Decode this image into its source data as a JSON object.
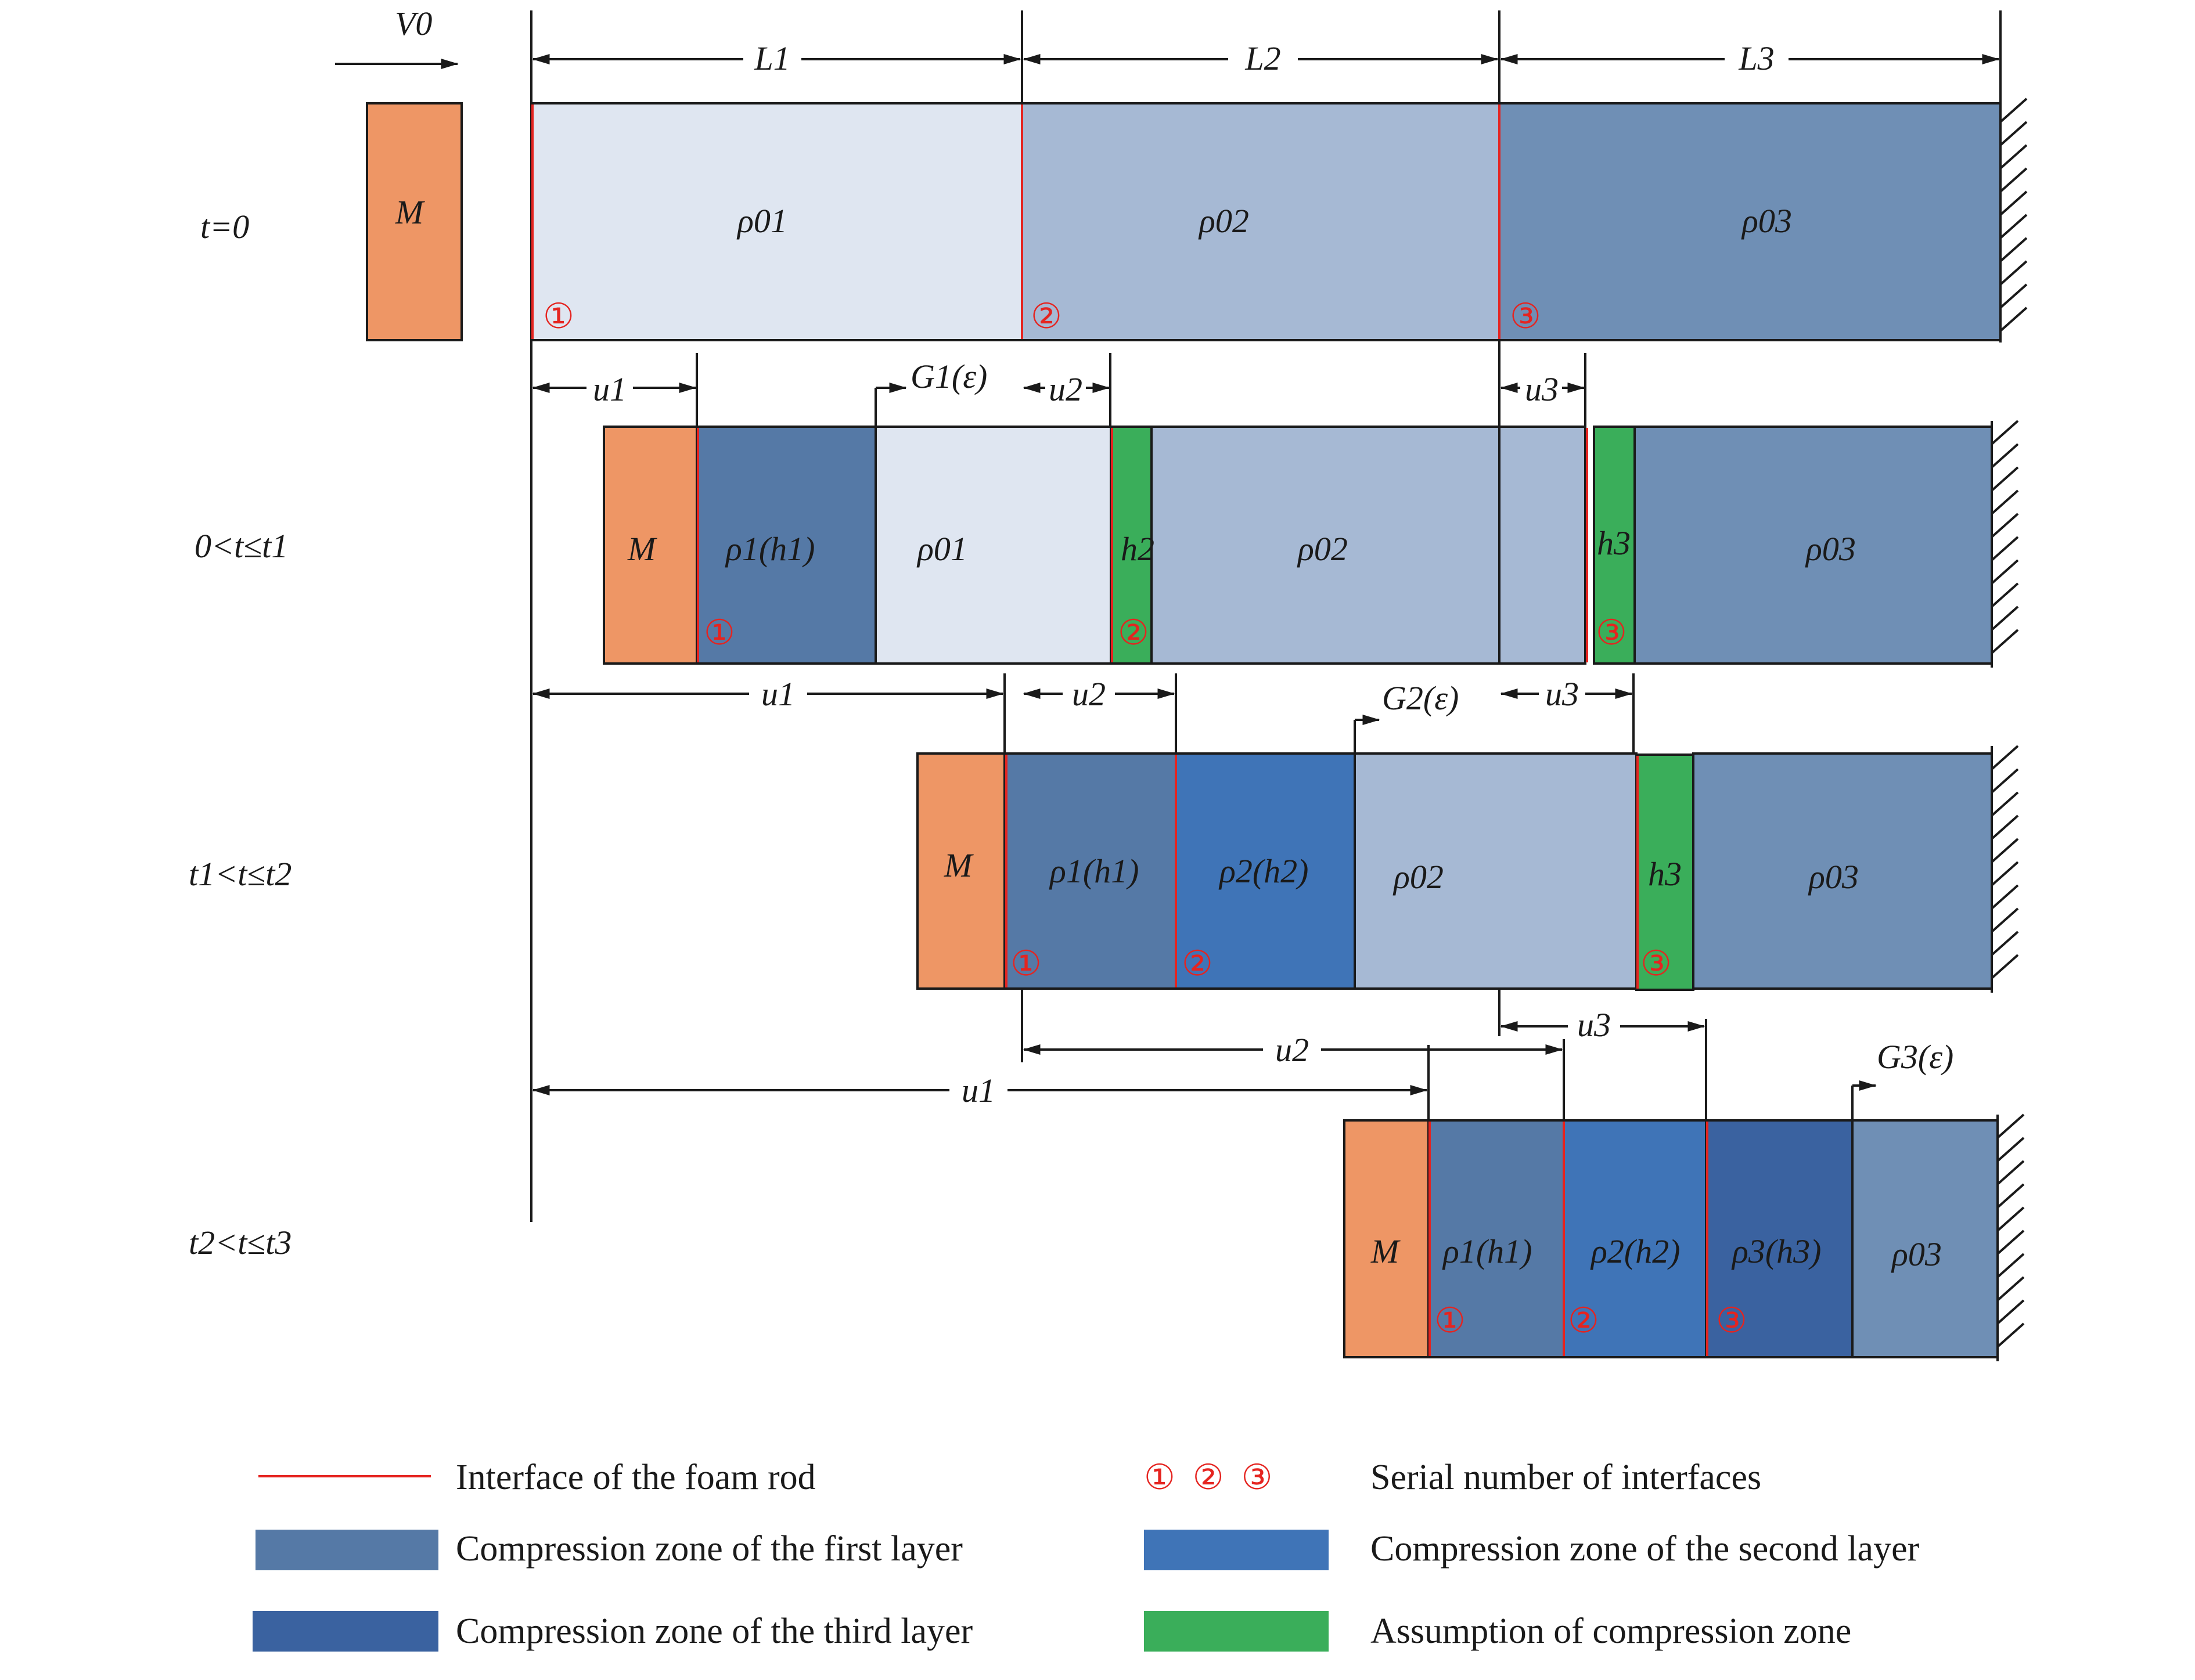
{
  "rows": [
    {
      "time_label": "t=0"
    },
    {
      "time_label": "0<t≤t1"
    },
    {
      "time_label": "t1<t≤t2"
    },
    {
      "time_label": "t2<t≤t3"
    }
  ],
  "mass_label": "M",
  "velocity_label": "V0",
  "lengths": [
    "L1",
    "L2",
    "L3"
  ],
  "densities": [
    "ρ01",
    "ρ02",
    "ρ03"
  ],
  "compressed_densities": [
    "ρ1(h1)",
    "ρ2(h2)",
    "ρ3(h3)"
  ],
  "zone_thickness_labels": [
    "h2",
    "h3"
  ],
  "displacements": [
    "u1",
    "u2",
    "u3"
  ],
  "gradient_labels": [
    "G1(ε)",
    "G2(ε)",
    "G3(ε)"
  ],
  "interface_numbers": [
    "①",
    "②",
    "③"
  ],
  "colors": {
    "mass": "#ee9665",
    "layer1_initial": "#dfe6f1",
    "layer2_initial": "#a6b9d4",
    "layer3_initial": "#6f8fb5",
    "compression_first": "#5579a6",
    "compression_second": "#3f74b7",
    "compression_third": "#3a62a0",
    "assumed_zone": "#3aae5a",
    "interface": "#e52420"
  },
  "legend": [
    {
      "key": "interface",
      "label": "Interface of the foam rod"
    },
    {
      "key": "serial",
      "symbols": "①  ②  ③",
      "label": "Serial number of interfaces"
    },
    {
      "key": "compression_first",
      "label": "Compression zone of the first layer"
    },
    {
      "key": "compression_second",
      "label": "Compression zone of the second layer"
    },
    {
      "key": "compression_third",
      "label": "Compression zone of the third layer"
    },
    {
      "key": "assumed_zone",
      "label": "Assumption of compression zone"
    }
  ]
}
